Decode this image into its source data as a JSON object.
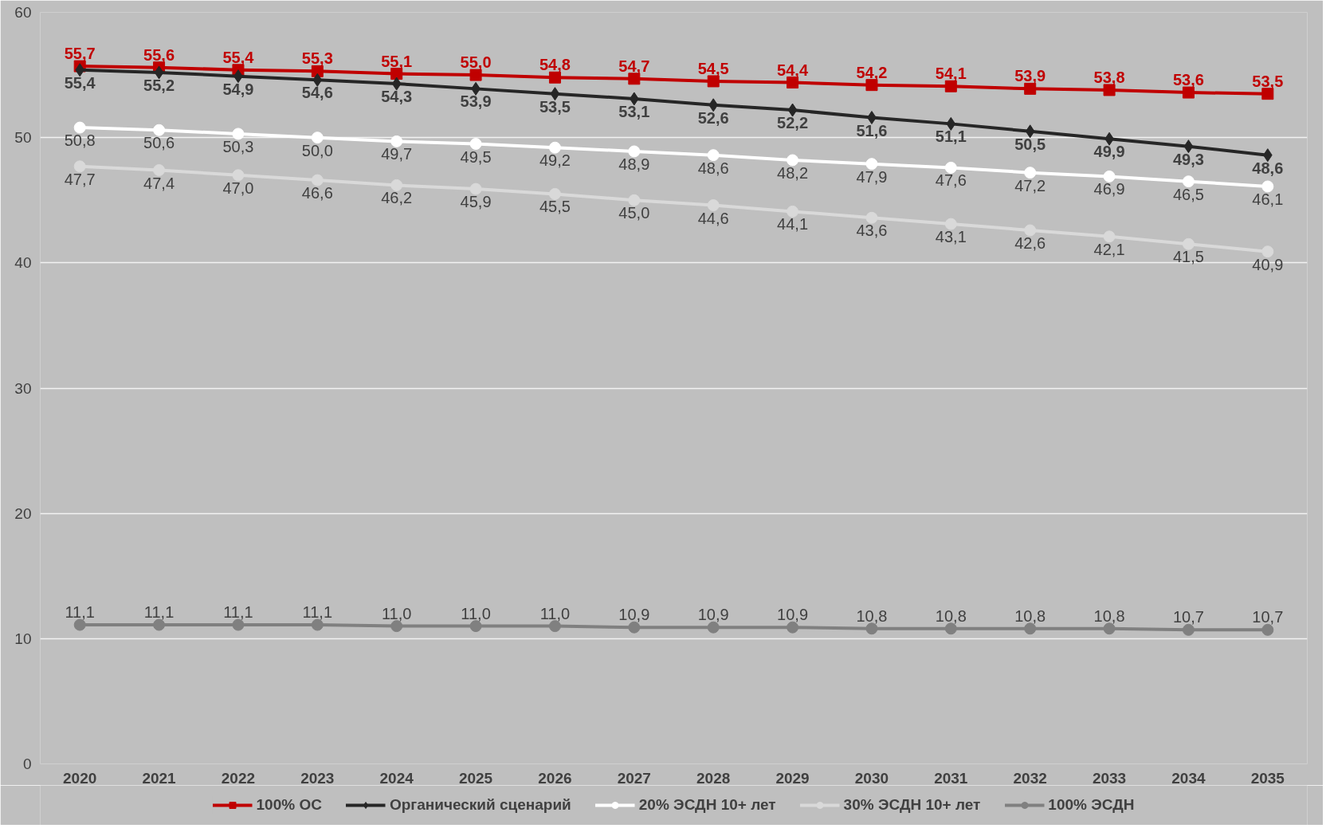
{
  "chart_data": {
    "type": "line",
    "categories": [
      "2020",
      "2021",
      "2022",
      "2023",
      "2024",
      "2025",
      "2026",
      "2027",
      "2028",
      "2029",
      "2030",
      "2031",
      "2032",
      "2033",
      "2034",
      "2035"
    ],
    "ylim": [
      0,
      60
    ],
    "yticks": [
      0,
      10,
      20,
      30,
      40,
      50,
      60
    ],
    "grid": "y",
    "legend": "bottom",
    "line_style": "solid",
    "series": [
      {
        "name": "100% ОС",
        "color": "#c00000",
        "marker": "square",
        "values": [
          55.7,
          55.6,
          55.4,
          55.3,
          55.1,
          55.0,
          54.8,
          54.7,
          54.5,
          54.4,
          54.2,
          54.1,
          53.9,
          53.8,
          53.6,
          53.5
        ],
        "value_labels": [
          "55,7",
          "55,6",
          "55,4",
          "55,3",
          "55,1",
          "55,0",
          "54,8",
          "54,7",
          "54,5",
          "54,4",
          "54,2",
          "54,1",
          "53,9",
          "53,8",
          "53,6",
          "53,5"
        ]
      },
      {
        "name": "Органический сценарий",
        "color": "#262626",
        "marker": "diamond",
        "values": [
          55.4,
          55.2,
          54.9,
          54.6,
          54.3,
          53.9,
          53.5,
          53.1,
          52.6,
          52.2,
          51.6,
          51.1,
          50.5,
          49.9,
          49.3,
          48.6
        ],
        "value_labels": [
          "55,4",
          "55,2",
          "54,9",
          "54,6",
          "54,3",
          "53,9",
          "53,5",
          "53,1",
          "52,6",
          "52,2",
          "51,6",
          "51,1",
          "50,5",
          "49,9",
          "49,3",
          "48,6"
        ]
      },
      {
        "name": "20% ЭСДН 10+ лет",
        "color": "#ffffff",
        "marker": "circle",
        "values": [
          50.8,
          50.6,
          50.3,
          50.0,
          49.7,
          49.5,
          49.2,
          48.9,
          48.6,
          48.2,
          47.9,
          47.6,
          47.2,
          46.9,
          46.5,
          46.1
        ],
        "value_labels": [
          "50,8",
          "50,6",
          "50,3",
          "50,0",
          "49,7",
          "49,5",
          "49,2",
          "48,9",
          "48,6",
          "48,2",
          "47,9",
          "47,6",
          "47,2",
          "46,9",
          "46,5",
          "46,1"
        ]
      },
      {
        "name": "30% ЭСДН 10+ лет",
        "color": "#d9d9d9",
        "marker": "circle",
        "values": [
          47.7,
          47.4,
          47.0,
          46.6,
          46.2,
          45.9,
          45.5,
          45.0,
          44.6,
          44.1,
          43.6,
          43.1,
          42.6,
          42.1,
          41.5,
          40.9
        ],
        "value_labels": [
          "47,7",
          "47,4",
          "47,0",
          "46,6",
          "46,2",
          "45,9",
          "45,5",
          "45,0",
          "44,6",
          "44,1",
          "43,6",
          "43,1",
          "42,6",
          "42,1",
          "41,5",
          "40,9"
        ]
      },
      {
        "name": "100% ЭСДН",
        "color": "#808080",
        "marker": "circle",
        "values": [
          11.1,
          11.1,
          11.1,
          11.1,
          11.0,
          11.0,
          11.0,
          10.9,
          10.9,
          10.9,
          10.8,
          10.8,
          10.8,
          10.8,
          10.7,
          10.7
        ],
        "value_labels": [
          "11,1",
          "11,1",
          "11,1",
          "11,1",
          "11,0",
          "11,0",
          "11,0",
          "10,9",
          "10,9",
          "10,9",
          "10,8",
          "10,8",
          "10,8",
          "10,8",
          "10,7",
          "10,7"
        ]
      }
    ]
  }
}
